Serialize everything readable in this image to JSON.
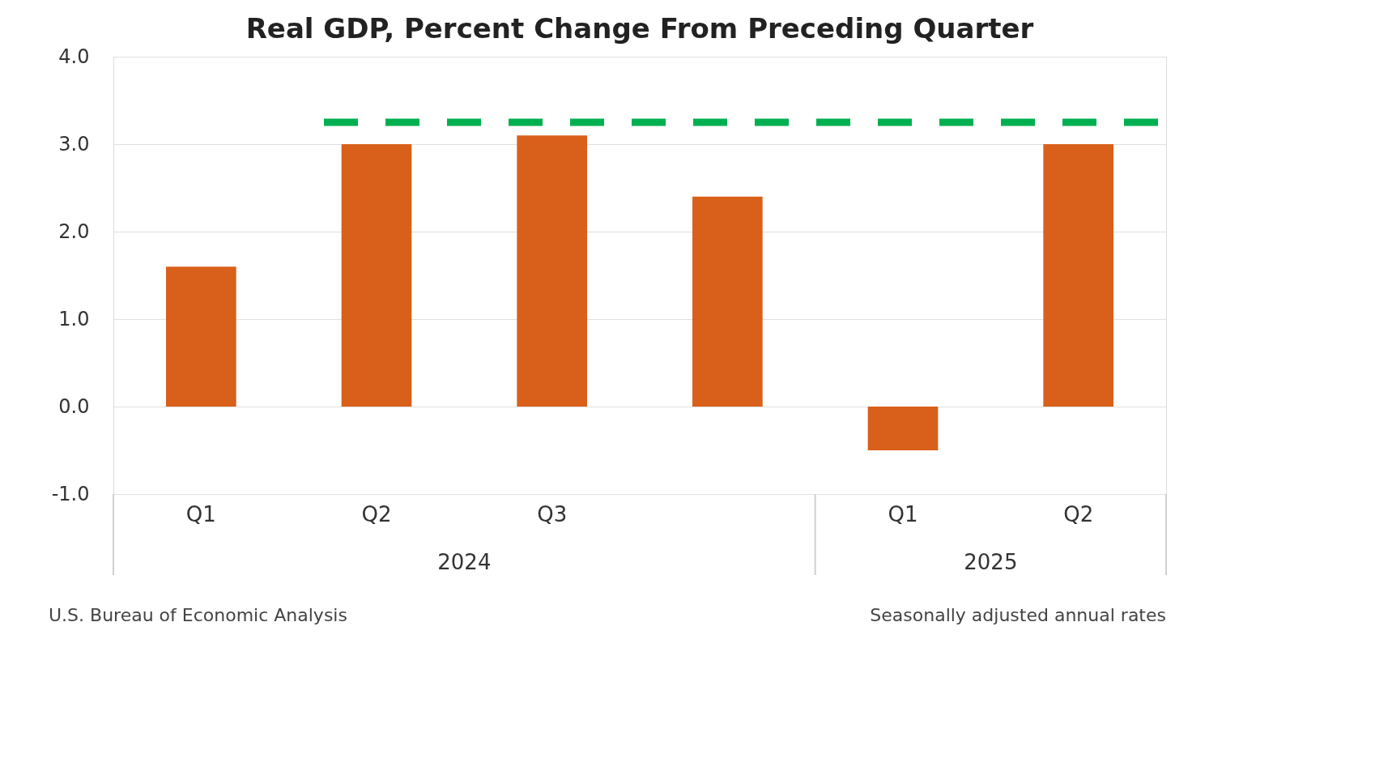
{
  "chart_data": {
    "type": "bar",
    "title": "Real GDP, Percent Change From Preceding Quarter",
    "categories": [
      "Q1",
      "Q2",
      "Q3",
      null,
      "Q1",
      "Q2"
    ],
    "values": [
      1.6,
      3.0,
      3.1,
      2.4,
      -0.5,
      3.0
    ],
    "color": "#d9601a",
    "ylim": [
      -1,
      4
    ],
    "yticks": [
      {
        "value": -1,
        "label": "-1.0"
      },
      {
        "value": 0,
        "label": "0.0"
      },
      {
        "value": 1,
        "label": "1.0"
      },
      {
        "value": 2,
        "label": "2.0"
      },
      {
        "value": 3,
        "label": "3.0"
      },
      {
        "value": 4,
        "label": "4.0"
      }
    ],
    "grid": "y",
    "ref_lines": [
      {
        "axis": "y",
        "value": 3.25,
        "color": "#00b050",
        "line_style": "dashed"
      }
    ],
    "annotations": [
      "2024",
      "2025",
      "U.S. Bureau of Economic Analysis",
      "Seasonally adjusted annual rates"
    ]
  }
}
